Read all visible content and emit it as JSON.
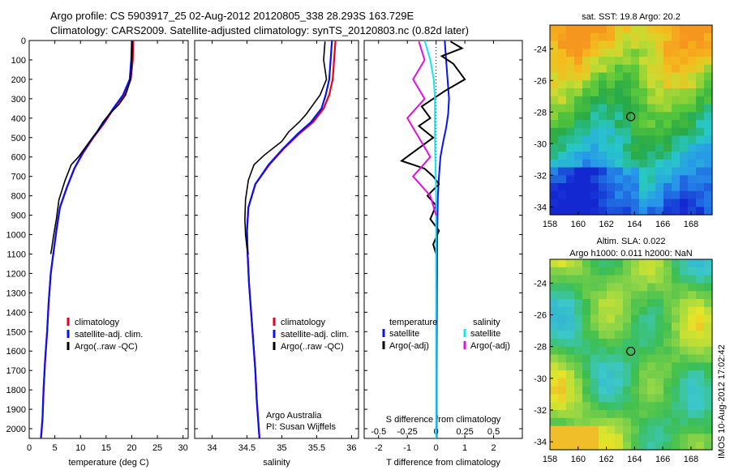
{
  "header": {
    "line1": "Argo profile: CS 5903917_25 02-Aug-2012 20120805_338 28.293S 163.729E",
    "line2": "Climatology: CARS2009. Satellite-adjusted climatology: synTS_20120803.nc (0.82d later)"
  },
  "side_caption": "IMOS 10-Aug-2012 17:02:42",
  "colors": {
    "climatology": "#e8001c",
    "satellite_adj": "#0a12f0",
    "argo": "#000000",
    "satellite_s": "#12e6f0",
    "argo_s": "#e010e0"
  },
  "chart_data": [
    {
      "type": "line",
      "id": "temperature",
      "xlabel": "temperature (deg C)",
      "ylabel": "",
      "xlim": [
        0,
        31
      ],
      "ylim": [
        2050,
        0
      ],
      "xticks": [
        0,
        5,
        10,
        15,
        20,
        25,
        30
      ],
      "yticks": [
        0,
        100,
        200,
        300,
        400,
        500,
        600,
        700,
        800,
        900,
        1000,
        1100,
        1200,
        1300,
        1400,
        1500,
        1600,
        1700,
        1800,
        1900,
        2000
      ],
      "legend": [
        "climatology",
        "satellite-adj. clim.",
        "Argo(..raw -QC)"
      ],
      "legend_placement": "lower-center",
      "series": [
        {
          "name": "climatology",
          "x": [
            20.3,
            20.2,
            19.8,
            18.5,
            16.5,
            14.5,
            12.5,
            10.5,
            8.8,
            7.3,
            6.0,
            5.3,
            4.8,
            4.2,
            3.8,
            3.5,
            3.1,
            2.8,
            2.6,
            2.3
          ],
          "y": [
            0,
            100,
            200,
            280,
            350,
            430,
            500,
            580,
            660,
            760,
            860,
            980,
            1080,
            1200,
            1350,
            1500,
            1650,
            1800,
            1950,
            2050
          ]
        },
        {
          "name": "satellite-adj. clim.",
          "x": [
            20.0,
            19.9,
            19.6,
            18.3,
            16.4,
            14.4,
            12.4,
            10.4,
            8.8,
            7.3,
            6.0,
            5.3,
            4.8,
            4.2,
            3.8,
            3.5,
            3.1,
            2.8,
            2.6,
            2.3
          ],
          "y": [
            0,
            100,
            200,
            280,
            350,
            430,
            500,
            580,
            660,
            760,
            860,
            980,
            1080,
            1200,
            1350,
            1500,
            1650,
            1800,
            1950,
            2050
          ]
        },
        {
          "name": "Argo(..raw -QC)",
          "x": [
            20.1,
            20.0,
            19.8,
            18.8,
            17.5,
            15.6,
            14.4,
            13.2,
            11.8,
            9.6,
            8.2,
            7.0,
            5.8,
            5.3,
            4.8,
            4.4,
            4.2
          ],
          "y": [
            5,
            100,
            200,
            280,
            330,
            380,
            420,
            470,
            520,
            600,
            640,
            720,
            820,
            920,
            1000,
            1070,
            1100
          ]
        }
      ]
    },
    {
      "type": "line",
      "id": "salinity",
      "xlabel": "salinity",
      "ylabel": "",
      "xlim": [
        33.75,
        36.1
      ],
      "ylim": [
        2050,
        0
      ],
      "xticks": [
        34,
        34.5,
        35,
        35.5,
        36
      ],
      "legend": [
        "climatology",
        "satellite-adj. clim.",
        "Argo(..raw -QC)"
      ],
      "legend_placement": "lower-center",
      "annotations": [
        "Argo Australia",
        "PI: Susan Wijffels"
      ],
      "series": [
        {
          "name": "climatology",
          "x": [
            35.77,
            35.75,
            35.73,
            35.68,
            35.6,
            35.45,
            35.25,
            35.02,
            34.82,
            34.62,
            34.52,
            34.5,
            34.51,
            34.53,
            34.56,
            34.59,
            34.62,
            34.64,
            34.66,
            34.68
          ],
          "y": [
            0,
            100,
            200,
            280,
            350,
            420,
            480,
            560,
            640,
            740,
            860,
            980,
            1100,
            1250,
            1400,
            1550,
            1700,
            1850,
            1950,
            2050
          ]
        },
        {
          "name": "satellite-adj. clim.",
          "x": [
            35.72,
            35.7,
            35.68,
            35.63,
            35.57,
            35.42,
            35.23,
            35.01,
            34.81,
            34.62,
            34.52,
            34.5,
            34.51,
            34.53,
            34.56,
            34.59,
            34.62,
            34.64,
            34.66,
            34.68
          ],
          "y": [
            0,
            100,
            200,
            280,
            350,
            420,
            480,
            560,
            640,
            740,
            860,
            980,
            1100,
            1250,
            1400,
            1550,
            1700,
            1850,
            1950,
            2050
          ]
        },
        {
          "name": "Argo(..raw -QC)",
          "x": [
            35.62,
            35.6,
            35.64,
            35.55,
            35.45,
            35.35,
            35.25,
            35.1,
            35.0,
            34.75,
            34.6,
            34.52,
            34.48,
            34.47,
            34.48,
            34.5,
            34.52
          ],
          "y": [
            5,
            100,
            200,
            280,
            330,
            380,
            420,
            470,
            520,
            590,
            640,
            720,
            820,
            920,
            1000,
            1070,
            1100
          ]
        }
      ]
    },
    {
      "type": "line",
      "id": "difference",
      "xlabel": "T difference from climatology",
      "xlabel_top": "S difference from climatology",
      "ylabel": "",
      "xlim": [
        -2.5,
        3.0
      ],
      "ylim": [
        2050,
        0
      ],
      "xticks_bottom": [
        -2,
        -1,
        0,
        1,
        2
      ],
      "xticks_top": [
        -0.5,
        -0.25,
        0,
        0.25,
        0.5
      ],
      "xticklabels_top": [
        "-0.5",
        "-0.25",
        "0",
        "0.25",
        "0.5"
      ],
      "legend_headers": [
        "temperature",
        "salinity"
      ],
      "legend": [
        "satellite",
        "Argo(-adj)",
        "satellite",
        "Argo(-adj)"
      ],
      "legend_placement": "lower-center",
      "series": [
        {
          "name": "satellite",
          "quantity": "temperature",
          "x": [
            0.3,
            0.35,
            0.4,
            0.45,
            0.42,
            0.35,
            0.25,
            0.15,
            0.1,
            0.06,
            0.04,
            0.03,
            0.02,
            0.02
          ],
          "y": [
            0,
            100,
            200,
            300,
            380,
            450,
            520,
            600,
            700,
            800,
            1000,
            1300,
            1700,
            2050
          ]
        },
        {
          "name": "Argo(-adj)",
          "quantity": "temperature",
          "x": [
            0.5,
            0.9,
            0.2,
            0.6,
            1.0,
            0.3,
            -0.5,
            -0.2,
            -0.6,
            -0.1,
            -1.2,
            -0.4,
            -0.1,
            0.1,
            -0.3,
            0.0,
            -0.2,
            0.1,
            -0.1,
            0.0
          ],
          "y": [
            5,
            40,
            80,
            120,
            200,
            260,
            340,
            400,
            440,
            500,
            620,
            660,
            700,
            740,
            800,
            850,
            920,
            980,
            1050,
            1100
          ]
        },
        {
          "name": "satellite",
          "quantity": "salinity",
          "x": [
            -0.1,
            -0.05,
            -0.02,
            -0.01,
            -0.01,
            0.0,
            0.0,
            0.0,
            0.0
          ],
          "y": [
            0,
            100,
            200,
            300,
            500,
            800,
            1100,
            1500,
            2050
          ]
        },
        {
          "name": "Argo(-adj)",
          "quantity": "salinity",
          "x": [
            -0.15,
            -0.1,
            -0.2,
            -0.1,
            -0.25,
            -0.15,
            -0.05,
            -0.2,
            -0.05,
            0.0
          ],
          "y": [
            5,
            100,
            200,
            300,
            400,
            500,
            600,
            700,
            800,
            900
          ]
        }
      ]
    },
    {
      "type": "heatmap",
      "id": "sst_map",
      "title": "sat. SST: 19.8  Argo: 20.2",
      "xlim": [
        158,
        169.5
      ],
      "ylim": [
        -34.5,
        -22.5
      ],
      "xticks": [
        158,
        160,
        162,
        164,
        166,
        168
      ],
      "yticks": [
        -24,
        -26,
        -28,
        -30,
        -32,
        -34
      ],
      "marker": {
        "lon": 163.729,
        "lat": -28.293
      }
    },
    {
      "type": "heatmap",
      "id": "sla_map",
      "title": "Altim. SLA: 0.022",
      "subtitle": "Argo h1000: 0.011  h2000: NaN",
      "xlim": [
        158,
        169.5
      ],
      "ylim": [
        -34.5,
        -22.5
      ],
      "xticks": [
        158,
        160,
        162,
        164,
        166,
        168
      ],
      "yticks": [
        -24,
        -26,
        -28,
        -30,
        -32,
        -34
      ],
      "marker": {
        "lon": 163.729,
        "lat": -28.293
      }
    }
  ]
}
